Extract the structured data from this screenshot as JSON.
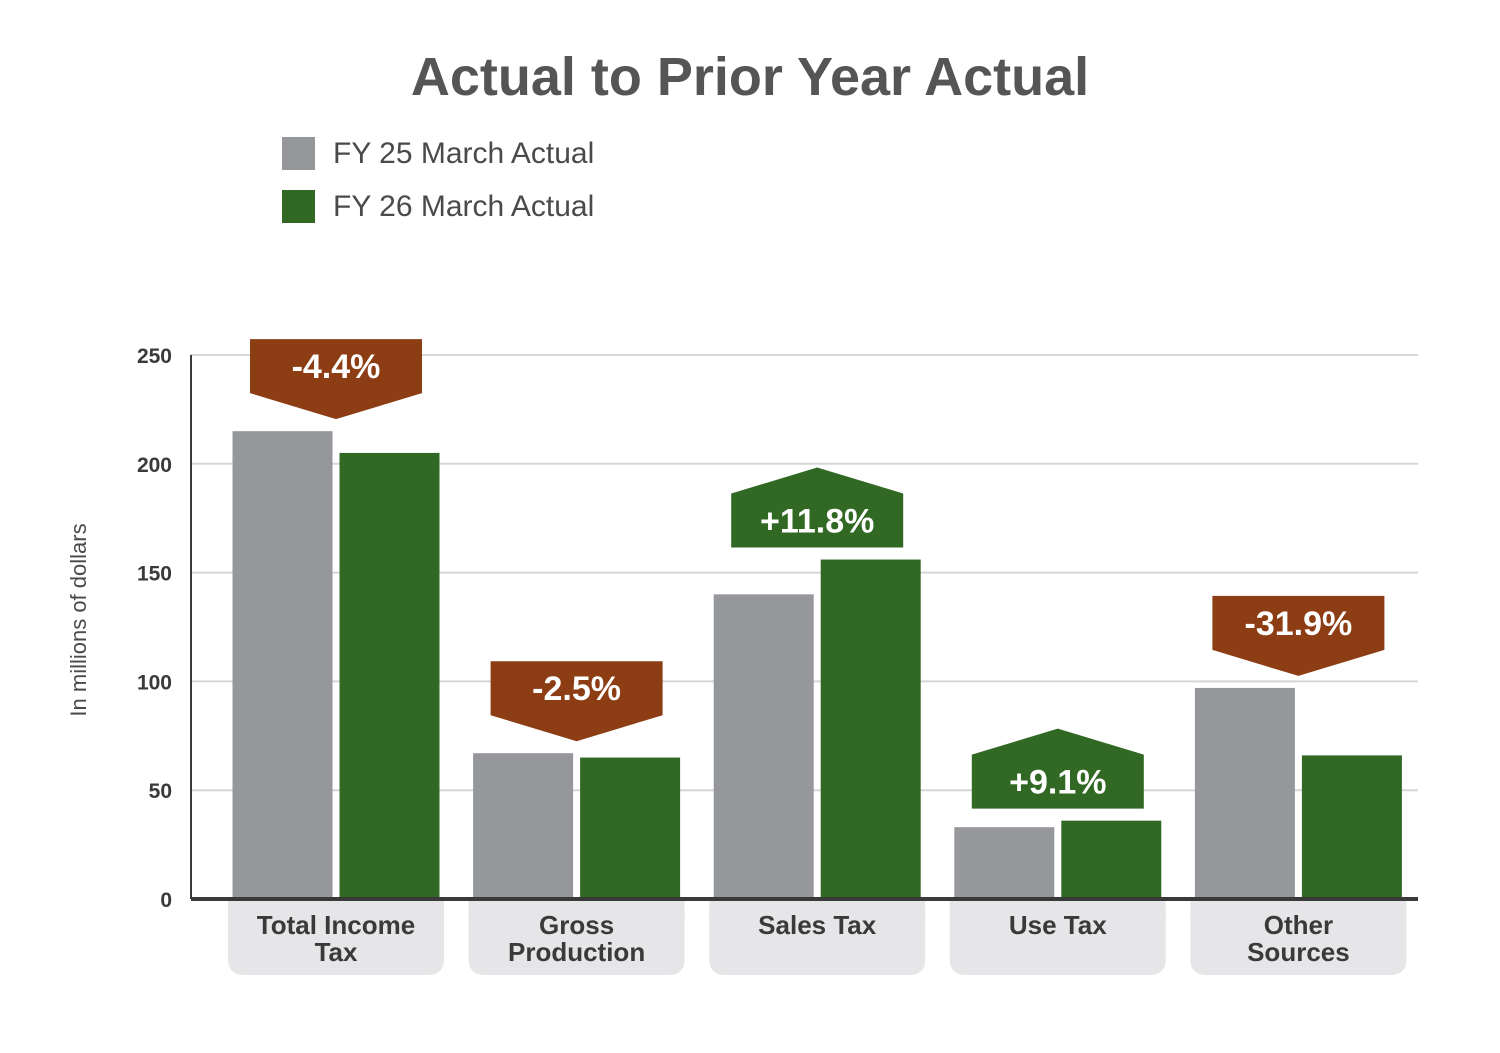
{
  "chart_data": {
    "type": "bar",
    "title": "Actual to Prior Year Actual",
    "ylabel": "In millions of dollars",
    "xlabel": "",
    "ylim": [
      0,
      250
    ],
    "yticks": [
      "0",
      "50",
      "100",
      "150",
      "200",
      "250"
    ],
    "grid": true,
    "legend_position": "top-left",
    "categories": [
      [
        "Total Income",
        "Tax"
      ],
      [
        "Gross",
        "Production"
      ],
      [
        "Sales Tax"
      ],
      [
        "Use Tax"
      ],
      [
        "Other",
        "Sources"
      ]
    ],
    "series": [
      {
        "name": "FY 25 March Actual",
        "color": "#96979b",
        "values": [
          215,
          67,
          140,
          33,
          97
        ]
      },
      {
        "name": "FY 26 March Actual",
        "color": "#316823",
        "values": [
          205,
          65,
          156,
          36,
          66
        ]
      }
    ],
    "annotations": [
      {
        "label": "-4.4%",
        "direction": "down",
        "color": "#8c3d14"
      },
      {
        "label": "-2.5%",
        "direction": "down",
        "color": "#8c3d14"
      },
      {
        "label": "+11.8%",
        "direction": "up",
        "color": "#316823"
      },
      {
        "label": "+9.1%",
        "direction": "up",
        "color": "#316823"
      },
      {
        "label": "-31.9%",
        "direction": "down",
        "color": "#8c3d14"
      }
    ],
    "colors": {
      "grid": "#d6d6d6",
      "axis": "#3a3a3a",
      "category_box": "#e6e6e8",
      "title": "#555555"
    }
  }
}
